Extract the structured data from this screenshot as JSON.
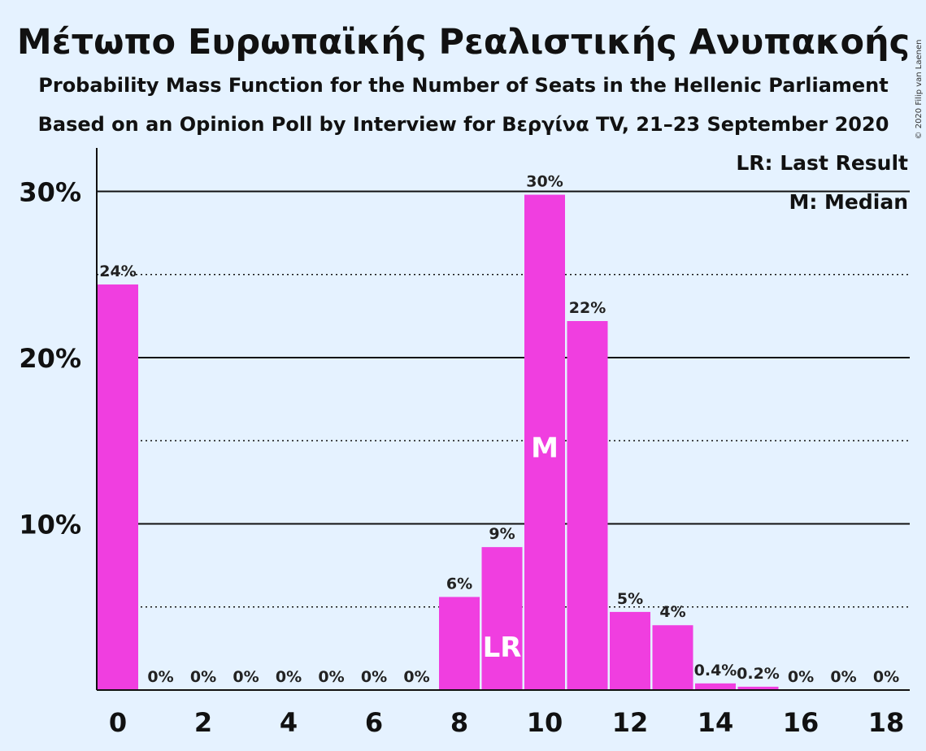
{
  "chart_data": {
    "type": "bar",
    "title": "Μέτωπο Ευρωπαϊκής Ρεαλιστικής Ανυπακοής",
    "subtitle": "Probability Mass Function for the Number of Seats in the Hellenic Parliament",
    "subtitle2": "Based on an Opinion Poll by Interview for Βεργίνα TV, 21–23 September 2020",
    "copyright": "© 2020 Filip van Laenen",
    "categories": [
      0,
      1,
      2,
      3,
      4,
      5,
      6,
      7,
      8,
      9,
      10,
      11,
      12,
      13,
      14,
      15,
      16,
      17,
      18
    ],
    "values": [
      24.4,
      0,
      0,
      0,
      0,
      0,
      0,
      0,
      5.6,
      8.6,
      29.8,
      22.2,
      4.7,
      3.9,
      0.4,
      0.2,
      0,
      0,
      0
    ],
    "value_labels": [
      "24%",
      "0%",
      "0%",
      "0%",
      "0%",
      "0%",
      "0%",
      "0%",
      "6%",
      "9%",
      "30%",
      "22%",
      "5%",
      "4%",
      "0.4%",
      "0.2%",
      "0%",
      "0%",
      "0%"
    ],
    "x_tick_labels": [
      "0",
      "2",
      "4",
      "6",
      "8",
      "10",
      "12",
      "14",
      "16",
      "18"
    ],
    "y_tick_labels": [
      "10%",
      "20%",
      "30%"
    ],
    "ylim": [
      0,
      32.5
    ],
    "last_result_seat": 9,
    "median_seat": 10,
    "last_result_marker": "LR",
    "median_marker": "M",
    "legend": {
      "last_result": "LR: Last Result",
      "median": "M: Median",
      "placement": "top-right"
    },
    "bar_color": "#f03ee0",
    "background_color": "#e5f2ff"
  }
}
